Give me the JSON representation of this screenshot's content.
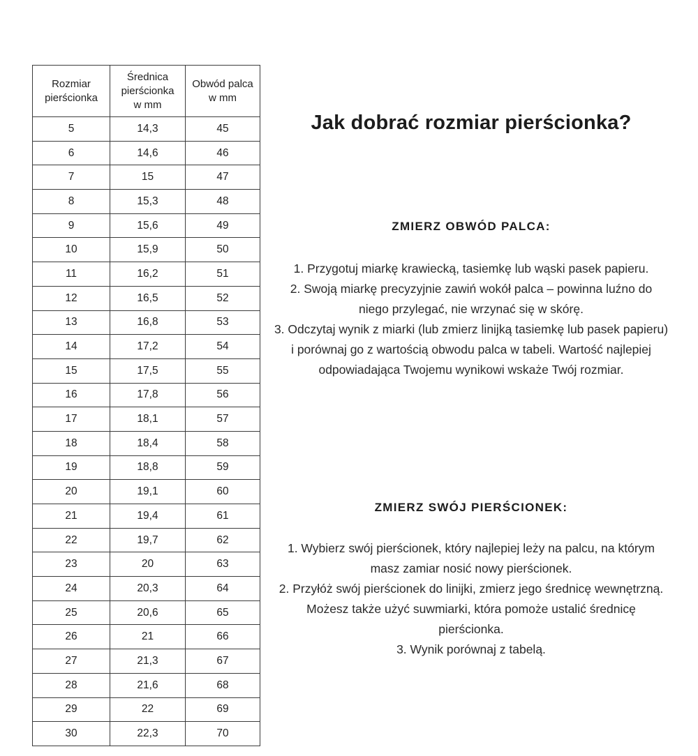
{
  "page": {
    "background": "#ffffff",
    "text_color": "#212121",
    "border_color": "#3b3b3b"
  },
  "table": {
    "headers": [
      "Rozmiar\npierścionka",
      "Średnica\npierścionka\nw mm",
      "Obwód palca\nw mm"
    ],
    "rows": [
      [
        "5",
        "14,3",
        "45"
      ],
      [
        "6",
        "14,6",
        "46"
      ],
      [
        "7",
        "15",
        "47"
      ],
      [
        "8",
        "15,3",
        "48"
      ],
      [
        "9",
        "15,6",
        "49"
      ],
      [
        "10",
        "15,9",
        "50"
      ],
      [
        "11",
        "16,2",
        "51"
      ],
      [
        "12",
        "16,5",
        "52"
      ],
      [
        "13",
        "16,8",
        "53"
      ],
      [
        "14",
        "17,2",
        "54"
      ],
      [
        "15",
        "17,5",
        "55"
      ],
      [
        "16",
        "17,8",
        "56"
      ],
      [
        "17",
        "18,1",
        "57"
      ],
      [
        "18",
        "18,4",
        "58"
      ],
      [
        "19",
        "18,8",
        "59"
      ],
      [
        "20",
        "19,1",
        "60"
      ],
      [
        "21",
        "19,4",
        "61"
      ],
      [
        "22",
        "19,7",
        "62"
      ],
      [
        "23",
        "20",
        "63"
      ],
      [
        "24",
        "20,3",
        "64"
      ],
      [
        "25",
        "20,6",
        "65"
      ],
      [
        "26",
        "21",
        "66"
      ],
      [
        "27",
        "21,3",
        "67"
      ],
      [
        "28",
        "21,6",
        "68"
      ],
      [
        "29",
        "22",
        "69"
      ],
      [
        "30",
        "22,3",
        "70"
      ]
    ]
  },
  "guide": {
    "title": "Jak dobrać rozmiar pierścionka?",
    "sections": [
      {
        "heading": "ZMIERZ OBWÓD PALCA:",
        "steps": [
          "1. Przygotuj miarkę krawiecką, tasiemkę lub wąski pasek papieru.",
          "2. Swoją miarkę precyzyjnie zawiń wokół palca – powinna luźno do niego przylegać, nie wrzynać się w skórę.",
          "3. Odczytaj wynik z miarki (lub zmierz linijką tasiemkę lub pasek papieru) i porównaj go z wartością obwodu palca w tabeli. Wartość najlepiej odpowiadająca Twojemu wynikowi wskaże Twój rozmiar."
        ]
      },
      {
        "heading": "ZMIERZ SWÓJ PIERŚCIONEK:",
        "steps": [
          "1.  Wybierz swój pierścionek, który najlepiej leży na palcu, na którym masz zamiar nosić nowy pierścionek.",
          "2. Przyłóż swój pierścionek do linijki, zmierz jego średnicę wewnętrzną. Możesz także użyć suwmiarki, która pomoże ustalić średnicę pierścionka.",
          "3. Wynik porównaj z tabelą."
        ]
      }
    ]
  }
}
